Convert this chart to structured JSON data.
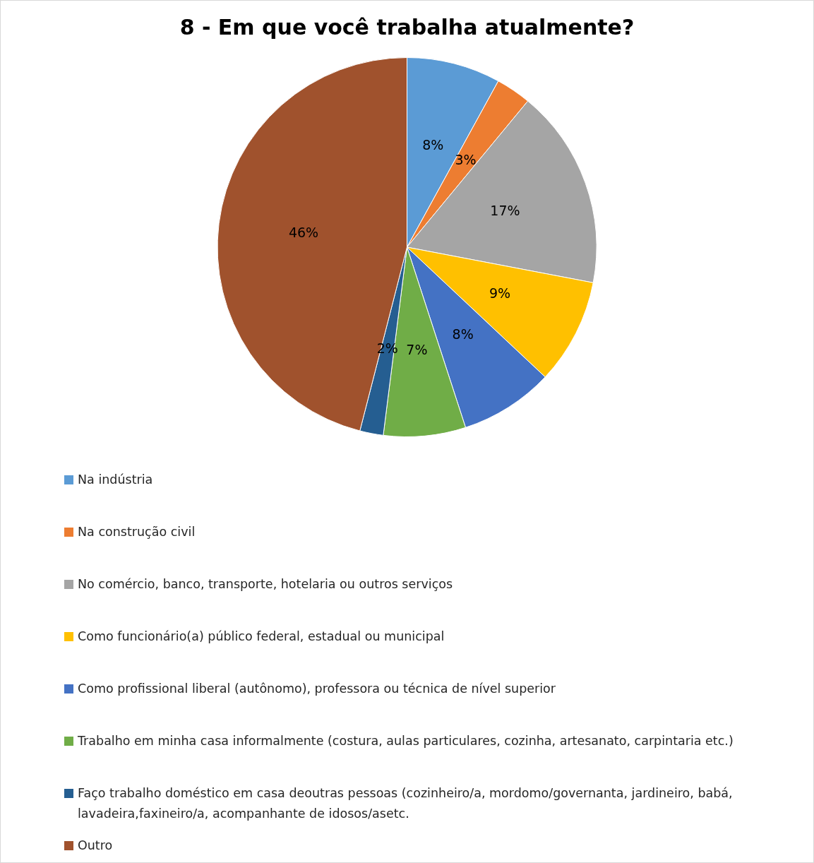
{
  "chart_data": {
    "type": "pie",
    "title": "8 - Em que você trabalha atualmente?",
    "categories": [
      "Na indústria",
      "Na construção civil",
      "No comércio, banco, transporte, hotelaria ou outros serviços",
      "Como funcionário(a) público federal, estadual ou municipal",
      "Como profissional liberal (autônomo), professora ou técnica de nível superior",
      "Trabalho em minha casa informalmente (costura, aulas particulares, cozinha, artesanato, carpintaria etc.)",
      "Faço trabalho doméstico em casa deoutras pessoas (cozinheiro/a, mordomo/governanta, jardineiro, babá, lavadeira,faxineiro/a, acompanhante de idosos/asetc.",
      "Outro"
    ],
    "values": [
      8,
      3,
      17,
      9,
      8,
      7,
      2,
      46
    ],
    "value_labels": [
      "8%",
      "3%",
      "17%",
      "9%",
      "8%",
      "7%",
      "2%",
      "46%"
    ],
    "colors": [
      "#5b9bd5",
      "#ed7d31",
      "#a5a5a5",
      "#ffc000",
      "#4472c4",
      "#70ad47",
      "#255e91",
      "#a0522d"
    ],
    "legend": "bottom"
  }
}
